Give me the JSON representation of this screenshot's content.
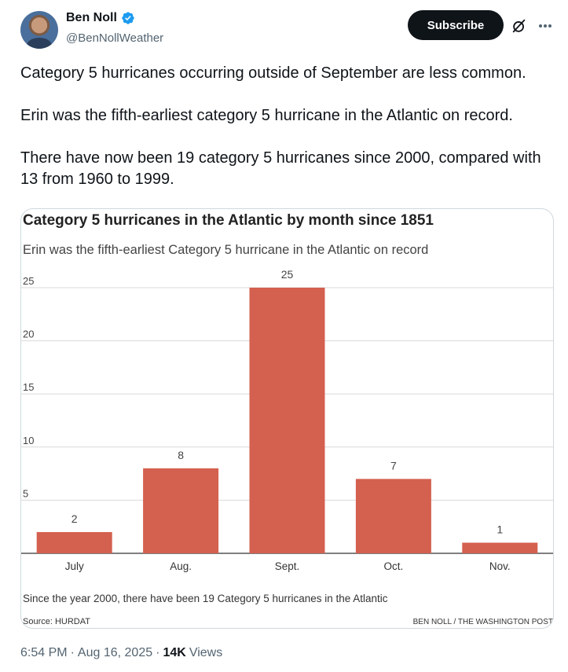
{
  "author": {
    "name": "Ben Noll",
    "handle": "@BenNollWeather",
    "verified_color": "#1d9bf0"
  },
  "actions": {
    "subscribe_label": "Subscribe",
    "grok_icon": "grok-slash-icon",
    "more_icon": "more-dots-icon"
  },
  "tweet": {
    "paragraphs": [
      "Category 5 hurricanes occurring outside of September are less common.",
      "Erin was the fifth-earliest category 5 hurricane in the Atlantic on record.",
      "There have now been 19 category 5 hurricanes since 2000, compared with 13 from 1960 to 1999."
    ]
  },
  "chart_data": {
    "type": "bar",
    "title": "Category 5 hurricanes in the Atlantic by month since 1851",
    "subtitle": "Erin was the fifth-earliest Category 5 hurricane in the Atlantic on record",
    "categories": [
      "July",
      "Aug.",
      "Sept.",
      "Oct.",
      "Nov."
    ],
    "values": [
      2,
      8,
      25,
      7,
      1
    ],
    "yticks": [
      5,
      10,
      15,
      20,
      25
    ],
    "ylim": [
      0,
      25
    ],
    "grid": true,
    "bar_color": "#d4604f",
    "note": "Since the year 2000, there have been 19 Category 5 hurricanes in the Atlantic",
    "source": "Source: HURDAT",
    "credit": "BEN NOLL / THE WASHINGTON POST"
  },
  "meta": {
    "time": "6:54 PM",
    "separator": "·",
    "date": "Aug 16, 2025",
    "views_count": "14K",
    "views_label": "Views"
  }
}
